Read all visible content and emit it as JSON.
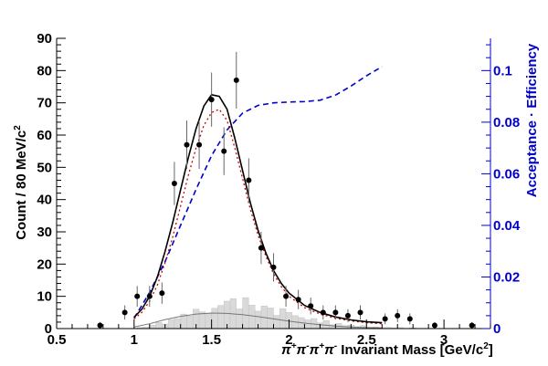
{
  "chart_data": {
    "type": "scatter",
    "xlabel_parts": {
      "pi_plus_1": "π",
      "pi_plus_1_sup": "+",
      "pi_minus_1": "π",
      "pi_minus_1_sup": "-",
      "pi_plus_2": "π",
      "pi_plus_2_sup": "+",
      "pi_minus_2": "π",
      "pi_minus_2_sup": "-",
      "rest": " Invariant Mass [GeV/c",
      "rest_sup": "2",
      "rest_end": "]"
    },
    "ylabel_left": {
      "main": "Count / 80 MeV/c",
      "sup": "2"
    },
    "ylabel_right": "Acceptance · Efficiency",
    "xlim": [
      0.5,
      3.3
    ],
    "ylim_left": [
      0,
      90
    ],
    "ylim_right": [
      0,
      0.1125
    ],
    "xticks": [
      {
        "value": 0.5,
        "label": "0.5"
      },
      {
        "value": 1.0,
        "label": "1"
      },
      {
        "value": 1.5,
        "label": "1.5"
      },
      {
        "value": 2.0,
        "label": "2"
      },
      {
        "value": 2.5,
        "label": "2.5"
      },
      {
        "value": 3.0,
        "label": "3"
      }
    ],
    "yticks_left": [
      {
        "value": 0,
        "label": "0"
      },
      {
        "value": 10,
        "label": "10"
      },
      {
        "value": 20,
        "label": "20"
      },
      {
        "value": 30,
        "label": "30"
      },
      {
        "value": 40,
        "label": "40"
      },
      {
        "value": 50,
        "label": "50"
      },
      {
        "value": 60,
        "label": "60"
      },
      {
        "value": 70,
        "label": "70"
      },
      {
        "value": 80,
        "label": "80"
      },
      {
        "value": 90,
        "label": "90"
      }
    ],
    "yticks_right": [
      {
        "value": 0,
        "label": "0"
      },
      {
        "value": 0.02,
        "label": "0.02"
      },
      {
        "value": 0.04,
        "label": "0.04"
      },
      {
        "value": 0.06,
        "label": "0.06"
      },
      {
        "value": 0.08,
        "label": "0.08"
      },
      {
        "value": 0.1,
        "label": "0.1"
      }
    ],
    "data_points": [
      {
        "x": 0.78,
        "y": 1,
        "err": 1.0
      },
      {
        "x": 0.94,
        "y": 5,
        "err": 2.2
      },
      {
        "x": 1.02,
        "y": 10,
        "err": 3.2
      },
      {
        "x": 1.1,
        "y": 10,
        "err": 3.2
      },
      {
        "x": 1.18,
        "y": 11,
        "err": 3.3
      },
      {
        "x": 1.26,
        "y": 45,
        "err": 6.7
      },
      {
        "x": 1.34,
        "y": 57,
        "err": 7.5
      },
      {
        "x": 1.42,
        "y": 57,
        "err": 7.5
      },
      {
        "x": 1.5,
        "y": 71,
        "err": 8.4
      },
      {
        "x": 1.58,
        "y": 55,
        "err": 7.4
      },
      {
        "x": 1.66,
        "y": 77,
        "err": 8.8
      },
      {
        "x": 1.74,
        "y": 46,
        "err": 6.8
      },
      {
        "x": 1.82,
        "y": 25,
        "err": 5.0
      },
      {
        "x": 1.9,
        "y": 19,
        "err": 4.4
      },
      {
        "x": 1.98,
        "y": 10,
        "err": 3.2
      },
      {
        "x": 2.06,
        "y": 9,
        "err": 3.0
      },
      {
        "x": 2.14,
        "y": 7,
        "err": 2.6
      },
      {
        "x": 2.22,
        "y": 5,
        "err": 2.2
      },
      {
        "x": 2.3,
        "y": 5,
        "err": 2.2
      },
      {
        "x": 2.38,
        "y": 4,
        "err": 2.0
      },
      {
        "x": 2.46,
        "y": 5,
        "err": 2.2
      },
      {
        "x": 2.62,
        "y": 3,
        "err": 1.7
      },
      {
        "x": 2.7,
        "y": 4,
        "err": 2.0
      },
      {
        "x": 2.78,
        "y": 3,
        "err": 1.7
      },
      {
        "x": 2.94,
        "y": 1,
        "err": 1.0
      },
      {
        "x": 3.18,
        "y": 1,
        "err": 1.0
      }
    ],
    "background_histogram": {
      "edges_start": 0.5,
      "bin_width": 0.04,
      "values": [
        0,
        0,
        0,
        0,
        0,
        0,
        0,
        0,
        0,
        0,
        0,
        0,
        0,
        0.3,
        0.5,
        1.1,
        1.9,
        1.4,
        2.8,
        3.1,
        4.5,
        3.9,
        6.0,
        5.2,
        4.6,
        6.3,
        7.2,
        8.5,
        9.3,
        6.1,
        9.6,
        7.3,
        5.4,
        7.0,
        6.4,
        4.1,
        6.2,
        5.0,
        4.0,
        3.4,
        2.7,
        3.1,
        1.8,
        2.5,
        1.2,
        1.6,
        0.9,
        1.1,
        0.6,
        0.9,
        0.4,
        0.5,
        0.3,
        0.4,
        0.2,
        0.3,
        0.1,
        0.2,
        0.1,
        0.1,
        0,
        0,
        0,
        0,
        0,
        0,
        0,
        0,
        0,
        0
      ],
      "color": "#d9d9d9"
    },
    "background_curve": {
      "points": [
        [
          1.0,
          0.5
        ],
        [
          1.1,
          1.5
        ],
        [
          1.2,
          2.8
        ],
        [
          1.3,
          3.8
        ],
        [
          1.4,
          4.5
        ],
        [
          1.5,
          4.8
        ],
        [
          1.6,
          4.7
        ],
        [
          1.7,
          4.3
        ],
        [
          1.8,
          3.7
        ],
        [
          1.9,
          3.0
        ],
        [
          2.0,
          2.3
        ],
        [
          2.1,
          1.7
        ],
        [
          2.2,
          1.2
        ],
        [
          2.3,
          0.8
        ],
        [
          2.4,
          0.5
        ],
        [
          2.5,
          0.3
        ],
        [
          2.6,
          0.2
        ]
      ],
      "color": "#777777"
    },
    "fit_total": {
      "points": [
        [
          1.0,
          3.5
        ],
        [
          1.05,
          6
        ],
        [
          1.1,
          10
        ],
        [
          1.15,
          16
        ],
        [
          1.2,
          24
        ],
        [
          1.25,
          33
        ],
        [
          1.3,
          43
        ],
        [
          1.35,
          53
        ],
        [
          1.4,
          62
        ],
        [
          1.45,
          69
        ],
        [
          1.5,
          72.5
        ],
        [
          1.55,
          72
        ],
        [
          1.6,
          68
        ],
        [
          1.65,
          59
        ],
        [
          1.7,
          49
        ],
        [
          1.75,
          39
        ],
        [
          1.8,
          30.5
        ],
        [
          1.85,
          23.5
        ],
        [
          1.9,
          18
        ],
        [
          1.95,
          14
        ],
        [
          2.0,
          11
        ],
        [
          2.1,
          7.2
        ],
        [
          2.2,
          5
        ],
        [
          2.3,
          3.6
        ],
        [
          2.4,
          2.7
        ],
        [
          2.5,
          2.1
        ],
        [
          2.6,
          1.8
        ]
      ],
      "color": "#000000"
    },
    "fit_signal": {
      "points": [
        [
          1.0,
          3
        ],
        [
          1.05,
          5
        ],
        [
          1.1,
          8.5
        ],
        [
          1.15,
          13.5
        ],
        [
          1.2,
          20.5
        ],
        [
          1.25,
          28.5
        ],
        [
          1.3,
          38
        ],
        [
          1.35,
          47.5
        ],
        [
          1.4,
          56
        ],
        [
          1.45,
          63
        ],
        [
          1.5,
          67
        ],
        [
          1.55,
          68
        ],
        [
          1.6,
          64.5
        ],
        [
          1.65,
          56
        ],
        [
          1.7,
          46.5
        ],
        [
          1.75,
          37
        ],
        [
          1.8,
          29
        ],
        [
          1.85,
          22.5
        ],
        [
          1.9,
          17
        ],
        [
          1.95,
          13
        ],
        [
          2.0,
          10
        ],
        [
          2.1,
          6.5
        ],
        [
          2.2,
          4.5
        ],
        [
          2.3,
          3.2
        ],
        [
          2.4,
          2.4
        ],
        [
          2.5,
          1.8
        ],
        [
          2.6,
          1.5
        ]
      ],
      "color": "#cc0000"
    },
    "acceptance_efficiency": {
      "points": [
        [
          1.0,
          0.004
        ],
        [
          1.1,
          0.014
        ],
        [
          1.2,
          0.026
        ],
        [
          1.3,
          0.04
        ],
        [
          1.4,
          0.054
        ],
        [
          1.5,
          0.067
        ],
        [
          1.6,
          0.077
        ],
        [
          1.7,
          0.0835
        ],
        [
          1.8,
          0.0865
        ],
        [
          1.9,
          0.0875
        ],
        [
          2.0,
          0.0878
        ],
        [
          2.1,
          0.088
        ],
        [
          2.2,
          0.0885
        ],
        [
          2.3,
          0.0905
        ],
        [
          2.4,
          0.094
        ],
        [
          2.5,
          0.098
        ],
        [
          2.6,
          0.1015
        ]
      ],
      "color": "#0000cc"
    },
    "right_axis_color": "#0000cc"
  }
}
